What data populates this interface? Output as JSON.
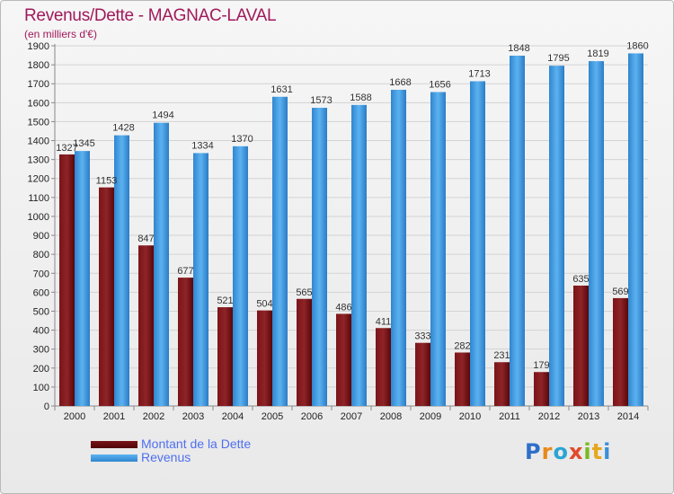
{
  "header": {
    "title": "Revenus/Dette - MAGNAC-LAVAL",
    "subtitle": "(en milliers d'€)"
  },
  "legend": [
    {
      "label": "Montant de la Dette"
    },
    {
      "label": "Revenus"
    }
  ],
  "logo": {
    "text": "Proxiti"
  },
  "colors": {
    "dette": "#6e0f12",
    "revenus": "#3c9bdf",
    "text": "#a0195a",
    "legend_text": "#4f6ff0"
  },
  "chart_data": {
    "type": "bar",
    "title": "Revenus/Dette - MAGNAC-LAVAL",
    "subtitle": "(en milliers d'€)",
    "categories": [
      "2000",
      "2001",
      "2002",
      "2003",
      "2004",
      "2005",
      "2006",
      "2007",
      "2008",
      "2009",
      "2010",
      "2011",
      "2012",
      "2013",
      "2014"
    ],
    "series": [
      {
        "name": "Montant de la Dette",
        "values": [
          1327,
          1153,
          847,
          677,
          521,
          504,
          565,
          486,
          411,
          333,
          282,
          231,
          179,
          635,
          569
        ]
      },
      {
        "name": "Revenus",
        "values": [
          1345,
          1428,
          1494,
          1334,
          1370,
          1631,
          1573,
          1588,
          1668,
          1656,
          1713,
          1848,
          1795,
          1819,
          1860
        ]
      }
    ],
    "ylim": [
      0,
      1900
    ],
    "yticks": [
      0,
      100,
      200,
      300,
      400,
      500,
      600,
      700,
      800,
      900,
      1000,
      1100,
      1200,
      1300,
      1400,
      1500,
      1600,
      1700,
      1800,
      1900
    ],
    "grid": true,
    "legend_position": "bottom-left"
  }
}
